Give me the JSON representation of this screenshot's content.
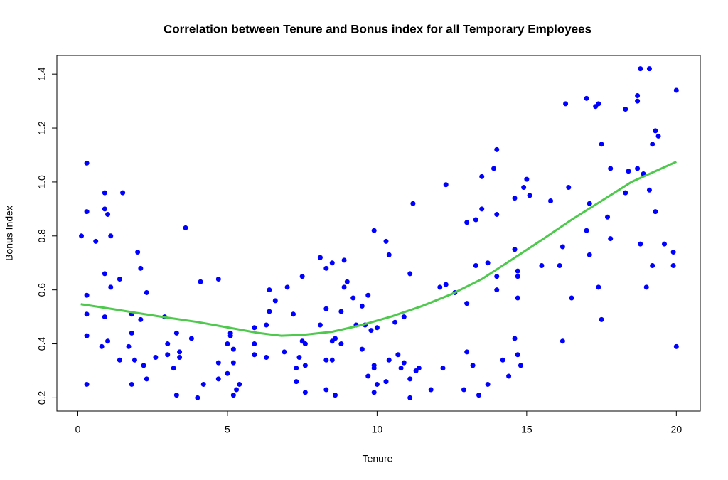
{
  "chart_data": {
    "type": "scatter",
    "title": "Correlation between Tenure and Bonus index for all Temporary Employees",
    "x_label": "Tenure",
    "y_label": "Bonus Index",
    "color": "#0000ff",
    "x": [
      0.12,
      0.3,
      0.3,
      0.3,
      0.3,
      0.3,
      0.3,
      0.6,
      0.8,
      0.9,
      0.9,
      0.9,
      0.9,
      1.0,
      1.0,
      1.1,
      1.1,
      1.4,
      1.4,
      1.5,
      1.7,
      1.8,
      1.8,
      1.8,
      1.9,
      2.0,
      2.1,
      2.1,
      2.2,
      2.3,
      2.3,
      2.6,
      2.9,
      3.0,
      3.0,
      3.2,
      3.3,
      3.3,
      3.4,
      3.4,
      3.6,
      3.8,
      4.0,
      4.1,
      4.2,
      4.7,
      4.7,
      4.7,
      5.0,
      5.0,
      5.1,
      5.1,
      5.2,
      5.2,
      5.2,
      5.3,
      5.4,
      5.9,
      5.9,
      5.9,
      6.3,
      6.3,
      6.4,
      6.4,
      6.6,
      6.9,
      7.0,
      7.2,
      7.3,
      7.3,
      7.4,
      7.5,
      7.5,
      7.6,
      7.6,
      7.6,
      8.1,
      8.1,
      8.3,
      8.3,
      8.3,
      8.3,
      8.5,
      8.5,
      8.5,
      8.6,
      8.6,
      8.8,
      8.8,
      8.9,
      8.9,
      9.0,
      9.2,
      9.3,
      9.5,
      9.5,
      9.6,
      9.7,
      9.7,
      9.8,
      9.9,
      9.9,
      9.9,
      9.9,
      10.0,
      10.0,
      10.3,
      10.3,
      10.4,
      10.4,
      10.6,
      10.7,
      10.8,
      10.9,
      10.9,
      11.1,
      11.1,
      11.1,
      11.2,
      11.3,
      11.4,
      11.8,
      12.1,
      12.2,
      12.3,
      12.3,
      12.6,
      12.9,
      13.0,
      13.0,
      13.0,
      13.2,
      13.3,
      13.3,
      13.4,
      13.5,
      13.5,
      13.7,
      13.7,
      13.9,
      14.0,
      14.0,
      14.0,
      14.0,
      14.2,
      14.4,
      14.6,
      14.6,
      14.6,
      14.7,
      14.7,
      14.7,
      14.7,
      14.8,
      14.9,
      15.0,
      15.1,
      15.5,
      15.8,
      16.1,
      16.2,
      16.2,
      16.3,
      16.4,
      16.5,
      17.0,
      17.0,
      17.1,
      17.1,
      17.3,
      17.4,
      17.4,
      17.5,
      17.5,
      17.7,
      17.8,
      17.8,
      18.3,
      18.3,
      18.4,
      18.7,
      18.7,
      18.7,
      18.8,
      18.8,
      18.9,
      19.0,
      19.1,
      19.1,
      19.2,
      19.2,
      19.3,
      19.3,
      19.4,
      19.6,
      19.9,
      19.9,
      20.0,
      20.0
    ],
    "values": [
      0.8,
      1.07,
      0.89,
      0.58,
      0.51,
      0.43,
      0.25,
      0.78,
      0.39,
      0.96,
      0.9,
      0.66,
      0.5,
      0.41,
      0.88,
      0.8,
      0.61,
      0.64,
      0.34,
      0.96,
      0.39,
      0.44,
      0.51,
      0.25,
      0.34,
      0.74,
      0.68,
      0.49,
      0.32,
      0.59,
      0.27,
      0.35,
      0.5,
      0.4,
      0.36,
      0.31,
      0.44,
      0.21,
      0.37,
      0.35,
      0.83,
      0.42,
      0.2,
      0.63,
      0.25,
      0.64,
      0.33,
      0.27,
      0.4,
      0.29,
      0.44,
      0.43,
      0.38,
      0.33,
      0.21,
      0.23,
      0.25,
      0.46,
      0.4,
      0.36,
      0.47,
      0.35,
      0.6,
      0.52,
      0.56,
      0.37,
      0.61,
      0.51,
      0.31,
      0.26,
      0.35,
      0.65,
      0.41,
      0.4,
      0.32,
      0.22,
      0.72,
      0.47,
      0.68,
      0.53,
      0.34,
      0.23,
      0.7,
      0.41,
      0.34,
      0.42,
      0.21,
      0.52,
      0.4,
      0.71,
      0.61,
      0.63,
      0.57,
      0.47,
      0.54,
      0.38,
      0.47,
      0.58,
      0.28,
      0.45,
      0.82,
      0.32,
      0.31,
      0.22,
      0.46,
      0.25,
      0.78,
      0.26,
      0.73,
      0.34,
      0.48,
      0.36,
      0.31,
      0.5,
      0.33,
      0.66,
      0.27,
      0.2,
      0.92,
      0.3,
      0.31,
      0.23,
      0.61,
      0.31,
      0.62,
      0.99,
      0.59,
      0.23,
      0.85,
      0.55,
      0.37,
      0.32,
      0.86,
      0.69,
      0.21,
      0.9,
      1.02,
      0.7,
      0.25,
      1.05,
      1.12,
      0.88,
      0.65,
      0.6,
      0.34,
      0.28,
      0.94,
      0.75,
      0.42,
      0.67,
      0.65,
      0.57,
      0.36,
      0.32,
      0.98,
      1.01,
      0.95,
      0.69,
      0.93,
      0.69,
      0.76,
      0.41,
      1.29,
      0.98,
      0.57,
      1.31,
      0.82,
      0.92,
      0.73,
      1.28,
      1.29,
      0.61,
      1.14,
      0.49,
      0.87,
      1.05,
      0.79,
      1.27,
      0.96,
      1.04,
      1.32,
      1.3,
      1.05,
      1.42,
      0.77,
      1.03,
      0.61,
      1.42,
      0.97,
      1.14,
      0.69,
      1.19,
      0.89,
      1.17,
      0.77,
      0.74,
      0.69,
      1.34,
      0.39
    ],
    "fit": {
      "color": "#4ec94e",
      "x": [
        0.1,
        1,
        2,
        3,
        4,
        5,
        6,
        6.8,
        7.5,
        8.5,
        9.5,
        10.5,
        11.5,
        12.5,
        13.5,
        14.5,
        15.5,
        16.5,
        17.5,
        18.5,
        20
      ],
      "values": [
        0.547,
        0.532,
        0.514,
        0.497,
        0.481,
        0.461,
        0.441,
        0.43,
        0.433,
        0.445,
        0.47,
        0.502,
        0.54,
        0.585,
        0.64,
        0.712,
        0.785,
        0.86,
        0.93,
        1.0,
        1.075
      ]
    },
    "xlim": [
      -0.7,
      20.8
    ],
    "ylim": [
      0.151,
      1.469
    ],
    "xticks": [
      0,
      5,
      10,
      15,
      20
    ],
    "yticks": [
      0.2,
      0.4,
      0.6,
      0.8,
      {
        "value": 1,
        "label": "1.0"
      },
      1.2,
      1.4
    ]
  }
}
